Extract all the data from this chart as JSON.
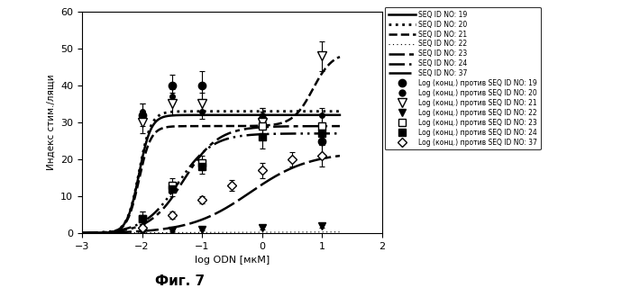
{
  "title": "Фиг. 7",
  "xlabel": "log ODN [мкМ]",
  "ylabel": "Индекс стим./лящи",
  "xlim": [
    -3,
    2
  ],
  "ylim": [
    0,
    60
  ],
  "xticks": [
    -3,
    -2,
    -1,
    0,
    1,
    2
  ],
  "yticks": [
    0,
    10,
    20,
    30,
    40,
    50,
    60
  ],
  "legend_line_entries": [
    {
      "label": "SEQ ID NO: 19",
      "style": "solid",
      "lw": 1.8
    },
    {
      "label": "SEQ ID NO: 20",
      "style": "dotted",
      "lw": 2.0
    },
    {
      "label": "SEQ ID NO: 21",
      "style": "dashed",
      "lw": 1.8
    },
    {
      "label": "SEQ ID NO: 22",
      "style": [
        1,
        3
      ],
      "lw": 0.8
    },
    {
      "label": "SEQ ID NO: 23",
      "style": [
        7,
        2,
        2,
        2
      ],
      "lw": 1.8
    },
    {
      "label": "SEQ ID NO: 24",
      "style": [
        7,
        2,
        1,
        2,
        1,
        2
      ],
      "lw": 1.8
    },
    {
      "label": "SEQ ID NO: 37",
      "style": [
        10,
        2,
        10,
        2
      ],
      "lw": 1.8
    }
  ],
  "legend_marker_entries": [
    {
      "label": "Log (конц.) против SEQ ID NO: 19",
      "marker": "o",
      "ms": 6,
      "mfc": "black"
    },
    {
      "label": "Log (конц.) против SEQ ID NO: 20",
      "marker": "o",
      "ms": 5,
      "mfc": "black"
    },
    {
      "label": "Log (конц.) против SEQ ID NO: 21",
      "marker": "v",
      "ms": 7,
      "mfc": "white"
    },
    {
      "label": "Log (конц.) против SEQ ID NO: 22",
      "marker": "v",
      "ms": 6,
      "mfc": "black"
    },
    {
      "label": "Log (конц.) против SEQ ID NO: 23",
      "marker": "s",
      "ms": 6,
      "mfc": "white"
    },
    {
      "label": "Log (конц.) против SEQ ID NO: 24",
      "marker": "s",
      "ms": 6,
      "mfc": "black"
    },
    {
      "label": "Log (конц.) против SEQ ID NO: 37",
      "marker": "D",
      "ms": 5,
      "mfc": "white"
    }
  ]
}
